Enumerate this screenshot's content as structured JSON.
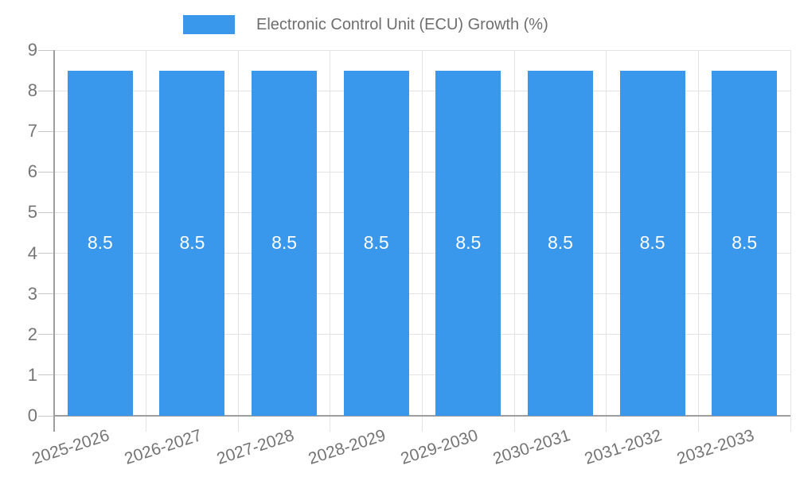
{
  "legend": {
    "label": "Electronic Control Unit (ECU) Growth (%)"
  },
  "chart_data": {
    "type": "bar",
    "title": "",
    "categories": [
      "2025-2026",
      "2026-2027",
      "2027-2028",
      "2028-2029",
      "2029-2030",
      "2030-2031",
      "2031-2032",
      "2032-2033"
    ],
    "series": [
      {
        "name": "Electronic Control Unit (ECU) Growth (%)",
        "values": [
          8.5,
          8.5,
          8.5,
          8.5,
          8.5,
          8.5,
          8.5,
          8.5
        ]
      }
    ],
    "bar_labels": [
      "8.5",
      "8.5",
      "8.5",
      "8.5",
      "8.5",
      "8.5",
      "8.5",
      "8.5"
    ],
    "ylim": [
      0,
      9
    ],
    "yticks": [
      0,
      1,
      2,
      3,
      4,
      5,
      6,
      7,
      8,
      9
    ],
    "grid": "on",
    "legend_position": "top-center",
    "x_label_rotation_deg": -18,
    "colors": {
      "bar": "#3998EB",
      "gridline": "#E3E3E3",
      "axis_line": "#9E9E9E",
      "tick_mark": "#C9C9C9",
      "axis_label": "#757575",
      "legend_text": "#6E6E6E",
      "value_label": "#FFFFFF",
      "background": "#FFFFFF"
    }
  }
}
